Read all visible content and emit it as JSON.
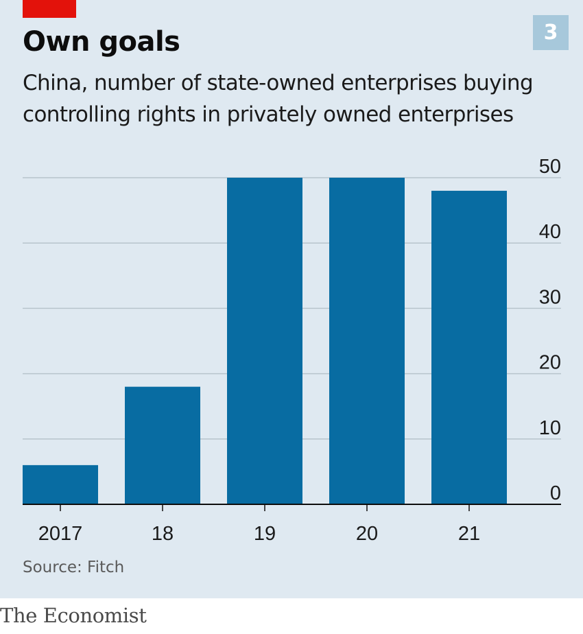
{
  "badge": "3",
  "title": "Own goals",
  "subtitle": "China, number of state-owned enterprises buying controlling rights in privately owned enterprises",
  "source": "Source: Fitch",
  "brand": "The Economist",
  "colors": {
    "bar": "#086ca2",
    "background": "#dfe9f1",
    "grid": "#b7c4cc",
    "accent": "#e3120b"
  },
  "chart_data": {
    "type": "bar",
    "categories": [
      "2017",
      "18",
      "19",
      "20",
      "21"
    ],
    "values": [
      6,
      18,
      50,
      50,
      48
    ],
    "ylim": [
      0,
      50
    ],
    "yticks": [
      0,
      10,
      20,
      30,
      40,
      50
    ],
    "ytick_labels": [
      "0",
      "10",
      "20",
      "30",
      "40",
      "50"
    ],
    "y_axis_side": "right",
    "grid": true,
    "title": "Own goals",
    "xlabel": "",
    "ylabel": ""
  }
}
